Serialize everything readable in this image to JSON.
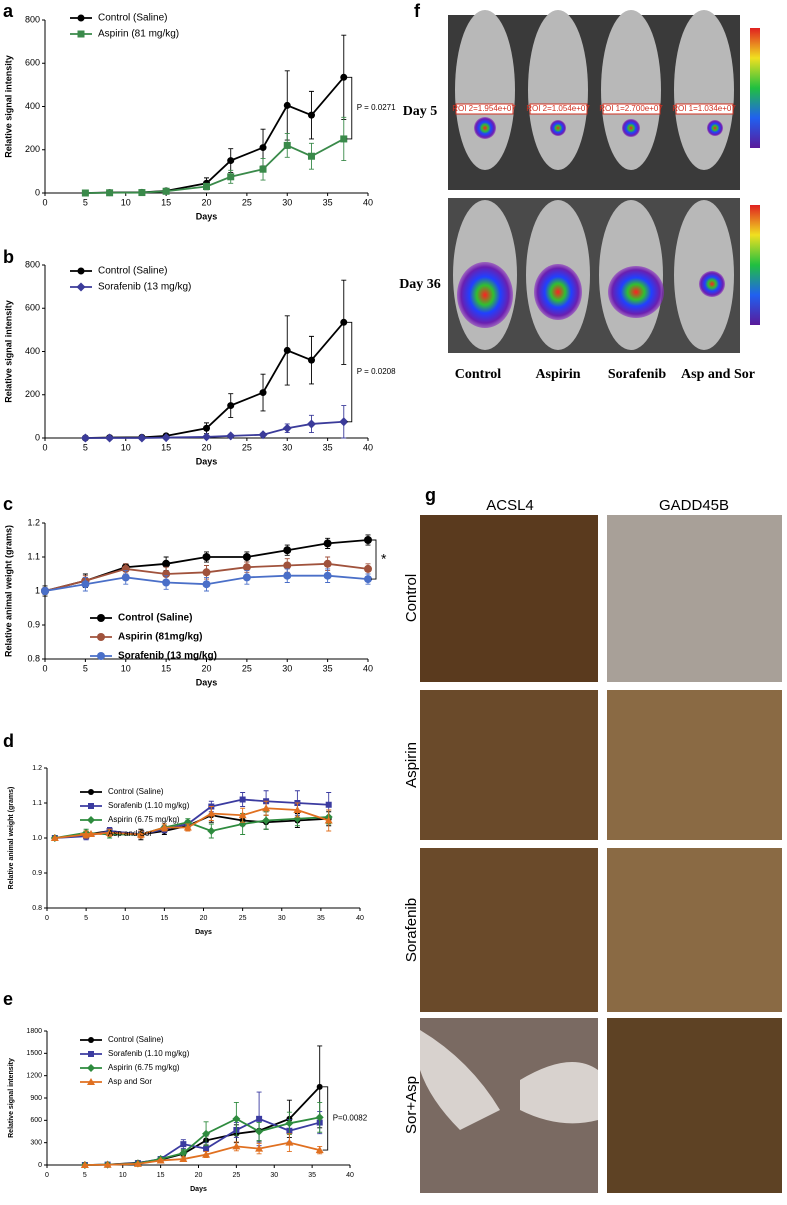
{
  "chart_data": [
    {
      "label": "a",
      "type": "line",
      "xlabel": "Days",
      "ylabel": "Relative signal intensity",
      "annotation": "P = 0.0271",
      "x": [
        5,
        8,
        12,
        15,
        20,
        23,
        27,
        30,
        33,
        37
      ],
      "xlim": [
        0,
        40
      ],
      "xticks": [
        0,
        5,
        10,
        15,
        20,
        25,
        30,
        35,
        40
      ],
      "ylim": [
        0,
        800
      ],
      "yticks": [
        0,
        200,
        400,
        600,
        800
      ],
      "series": [
        {
          "name": "Control (Saline)",
          "color": "#000000",
          "marker": "circle",
          "values": [
            0,
            2,
            3,
            10,
            45,
            150,
            210,
            405,
            360,
            535
          ],
          "errors": [
            0,
            1,
            2,
            5,
            25,
            55,
            85,
            160,
            110,
            195
          ]
        },
        {
          "name": "Aspirin (81 mg/kg)",
          "color": "#3a8a4a",
          "marker": "square",
          "values": [
            0,
            1,
            2,
            8,
            30,
            75,
            110,
            220,
            170,
            250
          ],
          "errors": [
            0,
            1,
            2,
            5,
            15,
            30,
            50,
            55,
            60,
            100
          ]
        }
      ]
    },
    {
      "label": "b",
      "type": "line",
      "xlabel": "Days",
      "ylabel": "Relative signal intensity",
      "annotation": "P = 0.0208",
      "x": [
        5,
        8,
        12,
        15,
        20,
        23,
        27,
        30,
        33,
        37
      ],
      "xlim": [
        0,
        40
      ],
      "xticks": [
        0,
        5,
        10,
        15,
        20,
        25,
        30,
        35,
        40
      ],
      "ylim": [
        0,
        800
      ],
      "yticks": [
        0,
        200,
        400,
        600,
        800
      ],
      "series": [
        {
          "name": "Control (Saline)",
          "color": "#000000",
          "marker": "circle",
          "values": [
            0,
            2,
            3,
            10,
            45,
            150,
            210,
            405,
            360,
            535
          ],
          "errors": [
            0,
            1,
            2,
            5,
            25,
            55,
            85,
            160,
            110,
            195
          ]
        },
        {
          "name": "Sorafenib (13 mg/kg)",
          "color": "#3b3b9a",
          "marker": "diamond",
          "values": [
            0,
            0,
            0,
            2,
            5,
            10,
            15,
            45,
            65,
            75
          ],
          "errors": [
            0,
            0,
            0,
            1,
            3,
            5,
            8,
            20,
            40,
            75
          ]
        }
      ]
    },
    {
      "label": "c",
      "type": "line",
      "xlabel": "Days",
      "ylabel": "Relative animal weight (grams)",
      "annotation": "*",
      "x": [
        0,
        5,
        10,
        15,
        20,
        25,
        30,
        35,
        40
      ],
      "xlim": [
        0,
        40
      ],
      "xticks": [
        0,
        5,
        10,
        15,
        20,
        25,
        30,
        35,
        40
      ],
      "ylim": [
        0.8,
        1.2
      ],
      "yticks": [
        0.8,
        0.9,
        1,
        1.1,
        1.2
      ],
      "series": [
        {
          "name": "Control (Saline)",
          "color": "#000000",
          "marker": "circle",
          "values": [
            1,
            1.03,
            1.07,
            1.08,
            1.1,
            1.1,
            1.12,
            1.14,
            1.15
          ],
          "errors": [
            0.015,
            0.02,
            0.01,
            0.02,
            0.015,
            0.015,
            0.015,
            0.015,
            0.015
          ]
        },
        {
          "name": "Aspirin (81mg/kg)",
          "color": "#a0523c",
          "marker": "circle",
          "values": [
            1,
            1.03,
            1.065,
            1.05,
            1.055,
            1.07,
            1.075,
            1.08,
            1.065
          ],
          "errors": [
            0.01,
            0.015,
            0.015,
            0.02,
            0.02,
            0.015,
            0.02,
            0.02,
            0.015
          ]
        },
        {
          "name": "Sorafenib (13 mg/kg)",
          "color": "#4a6fc8",
          "marker": "circle",
          "values": [
            1,
            1.02,
            1.04,
            1.025,
            1.02,
            1.04,
            1.045,
            1.045,
            1.035
          ],
          "errors": [
            0.01,
            0.02,
            0.02,
            0.02,
            0.02,
            0.02,
            0.02,
            0.02,
            0.015
          ]
        }
      ]
    },
    {
      "label": "d",
      "type": "line",
      "xlabel": "Days",
      "ylabel": "Relative animal weight (grams)",
      "x": [
        1,
        5,
        8,
        12,
        15,
        18,
        21,
        25,
        28,
        32,
        36
      ],
      "xlim": [
        0,
        40
      ],
      "xticks": [
        0,
        5,
        10,
        15,
        20,
        25,
        30,
        35,
        40
      ],
      "ylim": [
        0.8,
        1.2
      ],
      "yticks": [
        0.8,
        0.9,
        {
          "value": 1,
          "label": "1.0"
        },
        1.1,
        1.2
      ],
      "series": [
        {
          "name": "Control (Saline)",
          "color": "#000000",
          "marker": "circle",
          "values": [
            1,
            1.01,
            1.02,
            1.01,
            1.02,
            1.035,
            1.065,
            1.05,
            1.045,
            1.05,
            1.055
          ],
          "errors": [
            0,
            0.01,
            0.01,
            0.015,
            0.01,
            0.01,
            0.02,
            0.015,
            0.02,
            0.02,
            0.02
          ]
        },
        {
          "name": "Sorafenib (1.10 mg/kg)",
          "color": "#3b3ba0",
          "marker": "square",
          "values": [
            1,
            1.005,
            1.02,
            1.01,
            1.025,
            1.04,
            1.09,
            1.11,
            1.105,
            1.1,
            1.095
          ],
          "errors": [
            0,
            0.01,
            0.01,
            0.01,
            0.01,
            0.01,
            0.015,
            0.02,
            0.03,
            0.035,
            0.035
          ]
        },
        {
          "name": "Aspirin (6.75 mg/kg)",
          "color": "#2e8b3e",
          "marker": "diamond",
          "values": [
            1,
            1.015,
            1.01,
            1.01,
            1.03,
            1.045,
            1.02,
            1.04,
            1.05,
            1.055,
            1.06
          ],
          "errors": [
            0,
            0.01,
            0.01,
            0.01,
            0.01,
            0.01,
            0.02,
            0.03,
            0.025,
            0.02,
            0.02
          ]
        },
        {
          "name": "Asp and Sor",
          "color": "#e07020",
          "marker": "triangle",
          "values": [
            1,
            1.01,
            1.015,
            1.01,
            1.03,
            1.03,
            1.07,
            1.065,
            1.085,
            1.08,
            1.05
          ],
          "errors": [
            0,
            0.01,
            0.01,
            0.01,
            0.01,
            0.01,
            0.02,
            0.02,
            0.02,
            0.02,
            0.03
          ]
        }
      ]
    },
    {
      "label": "e",
      "type": "line",
      "xlabel": "Days",
      "ylabel": "Relative signal intensity",
      "annotation": "P=0.0082",
      "x": [
        5,
        8,
        12,
        15,
        18,
        21,
        25,
        28,
        32,
        36
      ],
      "xlim": [
        0,
        40
      ],
      "xticks": [
        0,
        5,
        10,
        15,
        20,
        25,
        30,
        35,
        40
      ],
      "ylim": [
        0,
        1800
      ],
      "yticks": [
        0,
        300,
        600,
        900,
        1200,
        1500,
        1800
      ],
      "series": [
        {
          "name": "Control (Saline)",
          "color": "#000000",
          "marker": "circle",
          "values": [
            0,
            5,
            30,
            70,
            150,
            330,
            420,
            460,
            620,
            1050
          ],
          "errors": [
            0,
            3,
            10,
            20,
            40,
            60,
            120,
            150,
            250,
            550
          ]
        },
        {
          "name": "Sorafenib (1.10 mg/kg)",
          "color": "#3b3ba0",
          "marker": "square",
          "values": [
            0,
            5,
            25,
            80,
            280,
            220,
            470,
            620,
            460,
            570
          ],
          "errors": [
            0,
            3,
            10,
            20,
            60,
            80,
            100,
            360,
            150,
            150
          ]
        },
        {
          "name": "Aspirin (6.75 mg/kg)",
          "color": "#2e8b3e",
          "marker": "diamond",
          "values": [
            0,
            5,
            20,
            80,
            160,
            420,
            620,
            450,
            560,
            640
          ],
          "errors": [
            0,
            3,
            10,
            20,
            50,
            160,
            220,
            120,
            150,
            200
          ]
        },
        {
          "name": "Asp and Sor",
          "color": "#e07020",
          "marker": "triangle",
          "values": [
            0,
            3,
            15,
            60,
            80,
            140,
            250,
            220,
            300,
            200
          ],
          "errors": [
            0,
            2,
            8,
            15,
            30,
            40,
            60,
            70,
            120,
            50
          ]
        }
      ]
    }
  ],
  "panel_f": {
    "label": "f",
    "rows": [
      "Day 5",
      "Day 36"
    ],
    "columns": [
      "Control",
      "Aspirin",
      "Sorafenib",
      "Asp and Sor"
    ],
    "roi": [
      "ROI 2=1.954e+07",
      "ROI 2=1.054e+07",
      "ROI 1=2.700e+07",
      "ROI 1=1.034e+07"
    ]
  },
  "panel_g": {
    "label": "g",
    "columns": [
      "ACSL4",
      "GADD45B"
    ],
    "rows": [
      "Control",
      "Aspirin",
      "Sorafenib",
      "Sor+Asp"
    ]
  }
}
